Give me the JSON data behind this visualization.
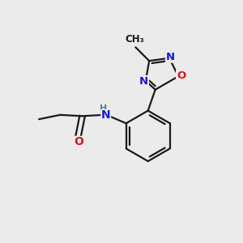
{
  "bg_color": "#ebebeb",
  "bond_color": "#1a1a1a",
  "atom_colors": {
    "N": "#1a1acc",
    "O": "#cc1a1a",
    "H": "#4a8888",
    "C": "#1a1a1a"
  },
  "figsize": [
    3.0,
    3.0
  ],
  "dpi": 100
}
